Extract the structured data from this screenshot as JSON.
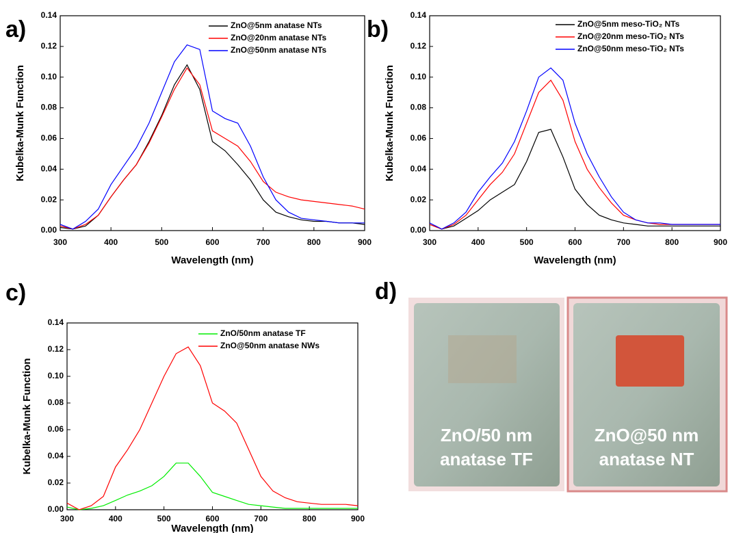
{
  "chart_data": [
    {
      "type": "line",
      "panel_label": "a)",
      "xlabel": "Wavelength (nm)",
      "ylabel": "Kubelka-Munk Function",
      "x": [
        300,
        325,
        350,
        375,
        400,
        425,
        450,
        475,
        500,
        525,
        550,
        575,
        600,
        625,
        650,
        675,
        700,
        725,
        750,
        775,
        800,
        825,
        850,
        875,
        900
      ],
      "xlim": [
        300,
        900
      ],
      "xticks": [
        300,
        400,
        500,
        600,
        700,
        800,
        900
      ],
      "ylim": [
        0,
        0.14
      ],
      "yticks": [
        {
          "value": 0,
          "label": "0.00"
        },
        {
          "value": 0.02,
          "label": "0.02"
        },
        {
          "value": 0.04,
          "label": "0.04"
        },
        {
          "value": 0.06,
          "label": "0.06"
        },
        {
          "value": 0.08,
          "label": "0.08"
        },
        {
          "value": 0.1,
          "label": "0.10"
        },
        {
          "value": 0.12,
          "label": "0.12"
        },
        {
          "value": 0.14,
          "label": "0.14"
        }
      ],
      "series": [
        {
          "name": "ZnO@5nm anatase NTs",
          "color": "#000000",
          "values": [
            0.002,
            0.001,
            0.003,
            0.01,
            0.022,
            0.033,
            0.043,
            0.058,
            0.075,
            0.095,
            0.108,
            0.092,
            0.058,
            0.052,
            0.043,
            0.033,
            0.02,
            0.012,
            0.009,
            0.007,
            0.006,
            0.006,
            0.005,
            0.005,
            0.004
          ]
        },
        {
          "name": "ZnO@20nm anatase NTs",
          "color": "#ff0000",
          "values": [
            0.003,
            0.001,
            0.004,
            0.01,
            0.022,
            0.033,
            0.043,
            0.057,
            0.074,
            0.092,
            0.106,
            0.095,
            0.065,
            0.06,
            0.055,
            0.045,
            0.032,
            0.025,
            0.022,
            0.02,
            0.019,
            0.018,
            0.017,
            0.016,
            0.014
          ]
        },
        {
          "name": "ZnO@50nm anatase NTs",
          "color": "#0000ff",
          "values": [
            0.004,
            0.001,
            0.006,
            0.014,
            0.03,
            0.042,
            0.054,
            0.07,
            0.09,
            0.11,
            0.121,
            0.118,
            0.078,
            0.073,
            0.07,
            0.055,
            0.035,
            0.02,
            0.012,
            0.008,
            0.007,
            0.006,
            0.005,
            0.005,
            0.005
          ]
        }
      ]
    },
    {
      "type": "line",
      "panel_label": "b)",
      "xlabel": "Wavelength (nm)",
      "ylabel": "Kubelka-Munk Function",
      "x": [
        300,
        325,
        350,
        375,
        400,
        425,
        450,
        475,
        500,
        525,
        550,
        575,
        600,
        625,
        650,
        675,
        700,
        725,
        750,
        775,
        800,
        825,
        850,
        875,
        900
      ],
      "xlim": [
        300,
        900
      ],
      "xticks": [
        300,
        400,
        500,
        600,
        700,
        800,
        900
      ],
      "ylim": [
        0,
        0.14
      ],
      "yticks": [
        {
          "value": 0,
          "label": "0.00"
        },
        {
          "value": 0.02,
          "label": "0.02"
        },
        {
          "value": 0.04,
          "label": "0.04"
        },
        {
          "value": 0.06,
          "label": "0.06"
        },
        {
          "value": 0.08,
          "label": "0.08"
        },
        {
          "value": 0.1,
          "label": "0.10"
        },
        {
          "value": 0.12,
          "label": "0.12"
        },
        {
          "value": 0.14,
          "label": "0.14"
        }
      ],
      "series": [
        {
          "name": "ZnO@5nm meso-TiO₂ NTs",
          "color": "#000000",
          "values": [
            0.004,
            0.001,
            0.003,
            0.008,
            0.013,
            0.02,
            0.025,
            0.03,
            0.045,
            0.064,
            0.066,
            0.048,
            0.027,
            0.017,
            0.01,
            0.007,
            0.005,
            0.004,
            0.003,
            0.003,
            0.003,
            0.003,
            0.003,
            0.003,
            0.003
          ]
        },
        {
          "name": "ZnO@20nm meso-TiO₂ NTs",
          "color": "#ff0000",
          "values": [
            0.004,
            0.001,
            0.004,
            0.01,
            0.02,
            0.03,
            0.038,
            0.05,
            0.07,
            0.09,
            0.098,
            0.085,
            0.058,
            0.04,
            0.028,
            0.018,
            0.01,
            0.007,
            0.005,
            0.004,
            0.004,
            0.004,
            0.004,
            0.004,
            0.004
          ]
        },
        {
          "name": "ZnO@50nm meso-TiO₂ NTs",
          "color": "#0000ff",
          "values": [
            0.005,
            0.001,
            0.005,
            0.012,
            0.025,
            0.035,
            0.044,
            0.058,
            0.078,
            0.1,
            0.106,
            0.098,
            0.07,
            0.05,
            0.035,
            0.022,
            0.012,
            0.007,
            0.005,
            0.005,
            0.004,
            0.004,
            0.004,
            0.004,
            0.004
          ]
        }
      ]
    },
    {
      "type": "line",
      "panel_label": "c)",
      "xlabel": "Wavelength (nm)",
      "ylabel": "Kubelka-Munk Function",
      "x": [
        300,
        325,
        350,
        375,
        400,
        425,
        450,
        475,
        500,
        525,
        550,
        575,
        600,
        625,
        650,
        675,
        700,
        725,
        750,
        775,
        800,
        825,
        850,
        875,
        900
      ],
      "xlim": [
        300,
        900
      ],
      "xticks": [
        300,
        400,
        500,
        600,
        700,
        800,
        900
      ],
      "ylim": [
        0,
        0.14
      ],
      "yticks": [
        {
          "value": 0,
          "label": "0.00"
        },
        {
          "value": 0.02,
          "label": "0.02"
        },
        {
          "value": 0.04,
          "label": "0.04"
        },
        {
          "value": 0.06,
          "label": "0.06"
        },
        {
          "value": 0.08,
          "label": "0.08"
        },
        {
          "value": 0.1,
          "label": "0.10"
        },
        {
          "value": 0.12,
          "label": "0.12"
        },
        {
          "value": 0.14,
          "label": "0.14"
        }
      ],
      "series": [
        {
          "name": "ZnO/50nm anatase TF",
          "color": "#00ee00",
          "values": [
            0.002,
            0,
            0.001,
            0.003,
            0.007,
            0.011,
            0.014,
            0.018,
            0.025,
            0.035,
            0.035,
            0.025,
            0.013,
            0.01,
            0.007,
            0.004,
            0.003,
            0.002,
            0.001,
            0.001,
            0.001,
            0.001,
            0.001,
            0.001,
            0.001
          ]
        },
        {
          "name": "ZnO@50nm anatase NWs",
          "color": "#ff0000",
          "values": [
            0.005,
            0,
            0.003,
            0.01,
            0.032,
            0.045,
            0.06,
            0.08,
            0.1,
            0.117,
            0.122,
            0.108,
            0.08,
            0.074,
            0.065,
            0.045,
            0.025,
            0.014,
            0.009,
            0.006,
            0.005,
            0.004,
            0.004,
            0.004,
            0.003
          ]
        }
      ]
    }
  ],
  "photo": {
    "label": "d)",
    "captions": [
      [
        "ZnO/50 nm",
        "anatase TF"
      ],
      [
        "ZnO@50 nm",
        "anatase NT"
      ]
    ]
  }
}
